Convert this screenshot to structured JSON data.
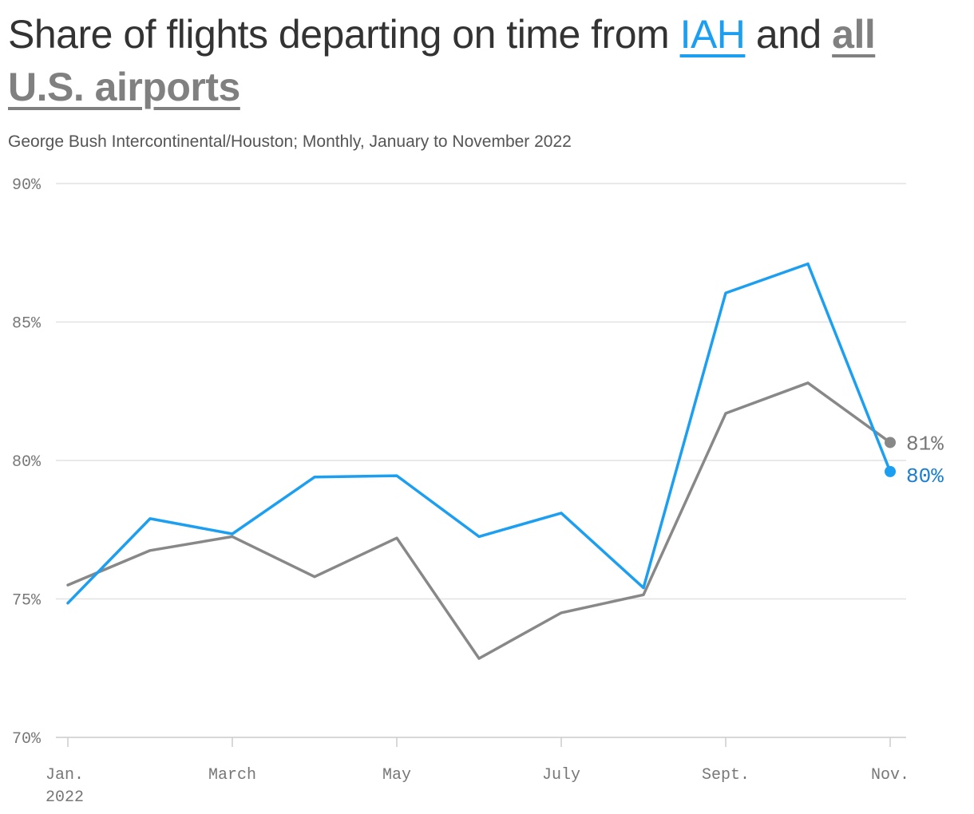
{
  "title": {
    "prefix": "Share of flights departing on time from ",
    "key_iah": "IAH",
    "middle": " and ",
    "key_all": "all U.S. airports"
  },
  "subtitle": "George Bush Intercontinental/Houston; Monthly, January to November 2022",
  "chart_data": {
    "type": "line",
    "x": [
      "2022-01",
      "2022-02",
      "2022-03",
      "2022-04",
      "2022-05",
      "2022-06",
      "2022-07",
      "2022-08",
      "2022-09",
      "2022-10",
      "2022-11"
    ],
    "x_tick_labels": [
      {
        "index": 0,
        "lines": [
          "Jan.",
          "2022"
        ]
      },
      {
        "index": 2,
        "lines": [
          "March"
        ]
      },
      {
        "index": 4,
        "lines": [
          "May"
        ]
      },
      {
        "index": 6,
        "lines": [
          "July"
        ]
      },
      {
        "index": 8,
        "lines": [
          "Sept."
        ]
      },
      {
        "index": 10,
        "lines": [
          "Nov."
        ]
      }
    ],
    "ylim": [
      70,
      90
    ],
    "y_ticks": [
      {
        "value": 70,
        "label": "70%"
      },
      {
        "value": 75,
        "label": "75%"
      },
      {
        "value": 80,
        "label": "80%"
      },
      {
        "value": 85,
        "label": "85%"
      },
      {
        "value": 90,
        "label": "90%"
      }
    ],
    "grid": true,
    "legend": "title",
    "series": [
      {
        "key": "all",
        "color": "#888888",
        "label_color": "#777777",
        "end_label": "81%",
        "values": [
          75.5,
          76.75,
          77.25,
          75.8,
          77.2,
          72.85,
          74.5,
          75.15,
          81.7,
          82.8,
          80.65
        ]
      },
      {
        "key": "iah",
        "color": "#1c9ff0",
        "label_color": "#1a7fd0",
        "end_label": "80%",
        "values": [
          74.85,
          77.9,
          77.35,
          79.4,
          79.45,
          77.25,
          78.1,
          75.4,
          86.05,
          87.1,
          79.6
        ]
      }
    ]
  }
}
